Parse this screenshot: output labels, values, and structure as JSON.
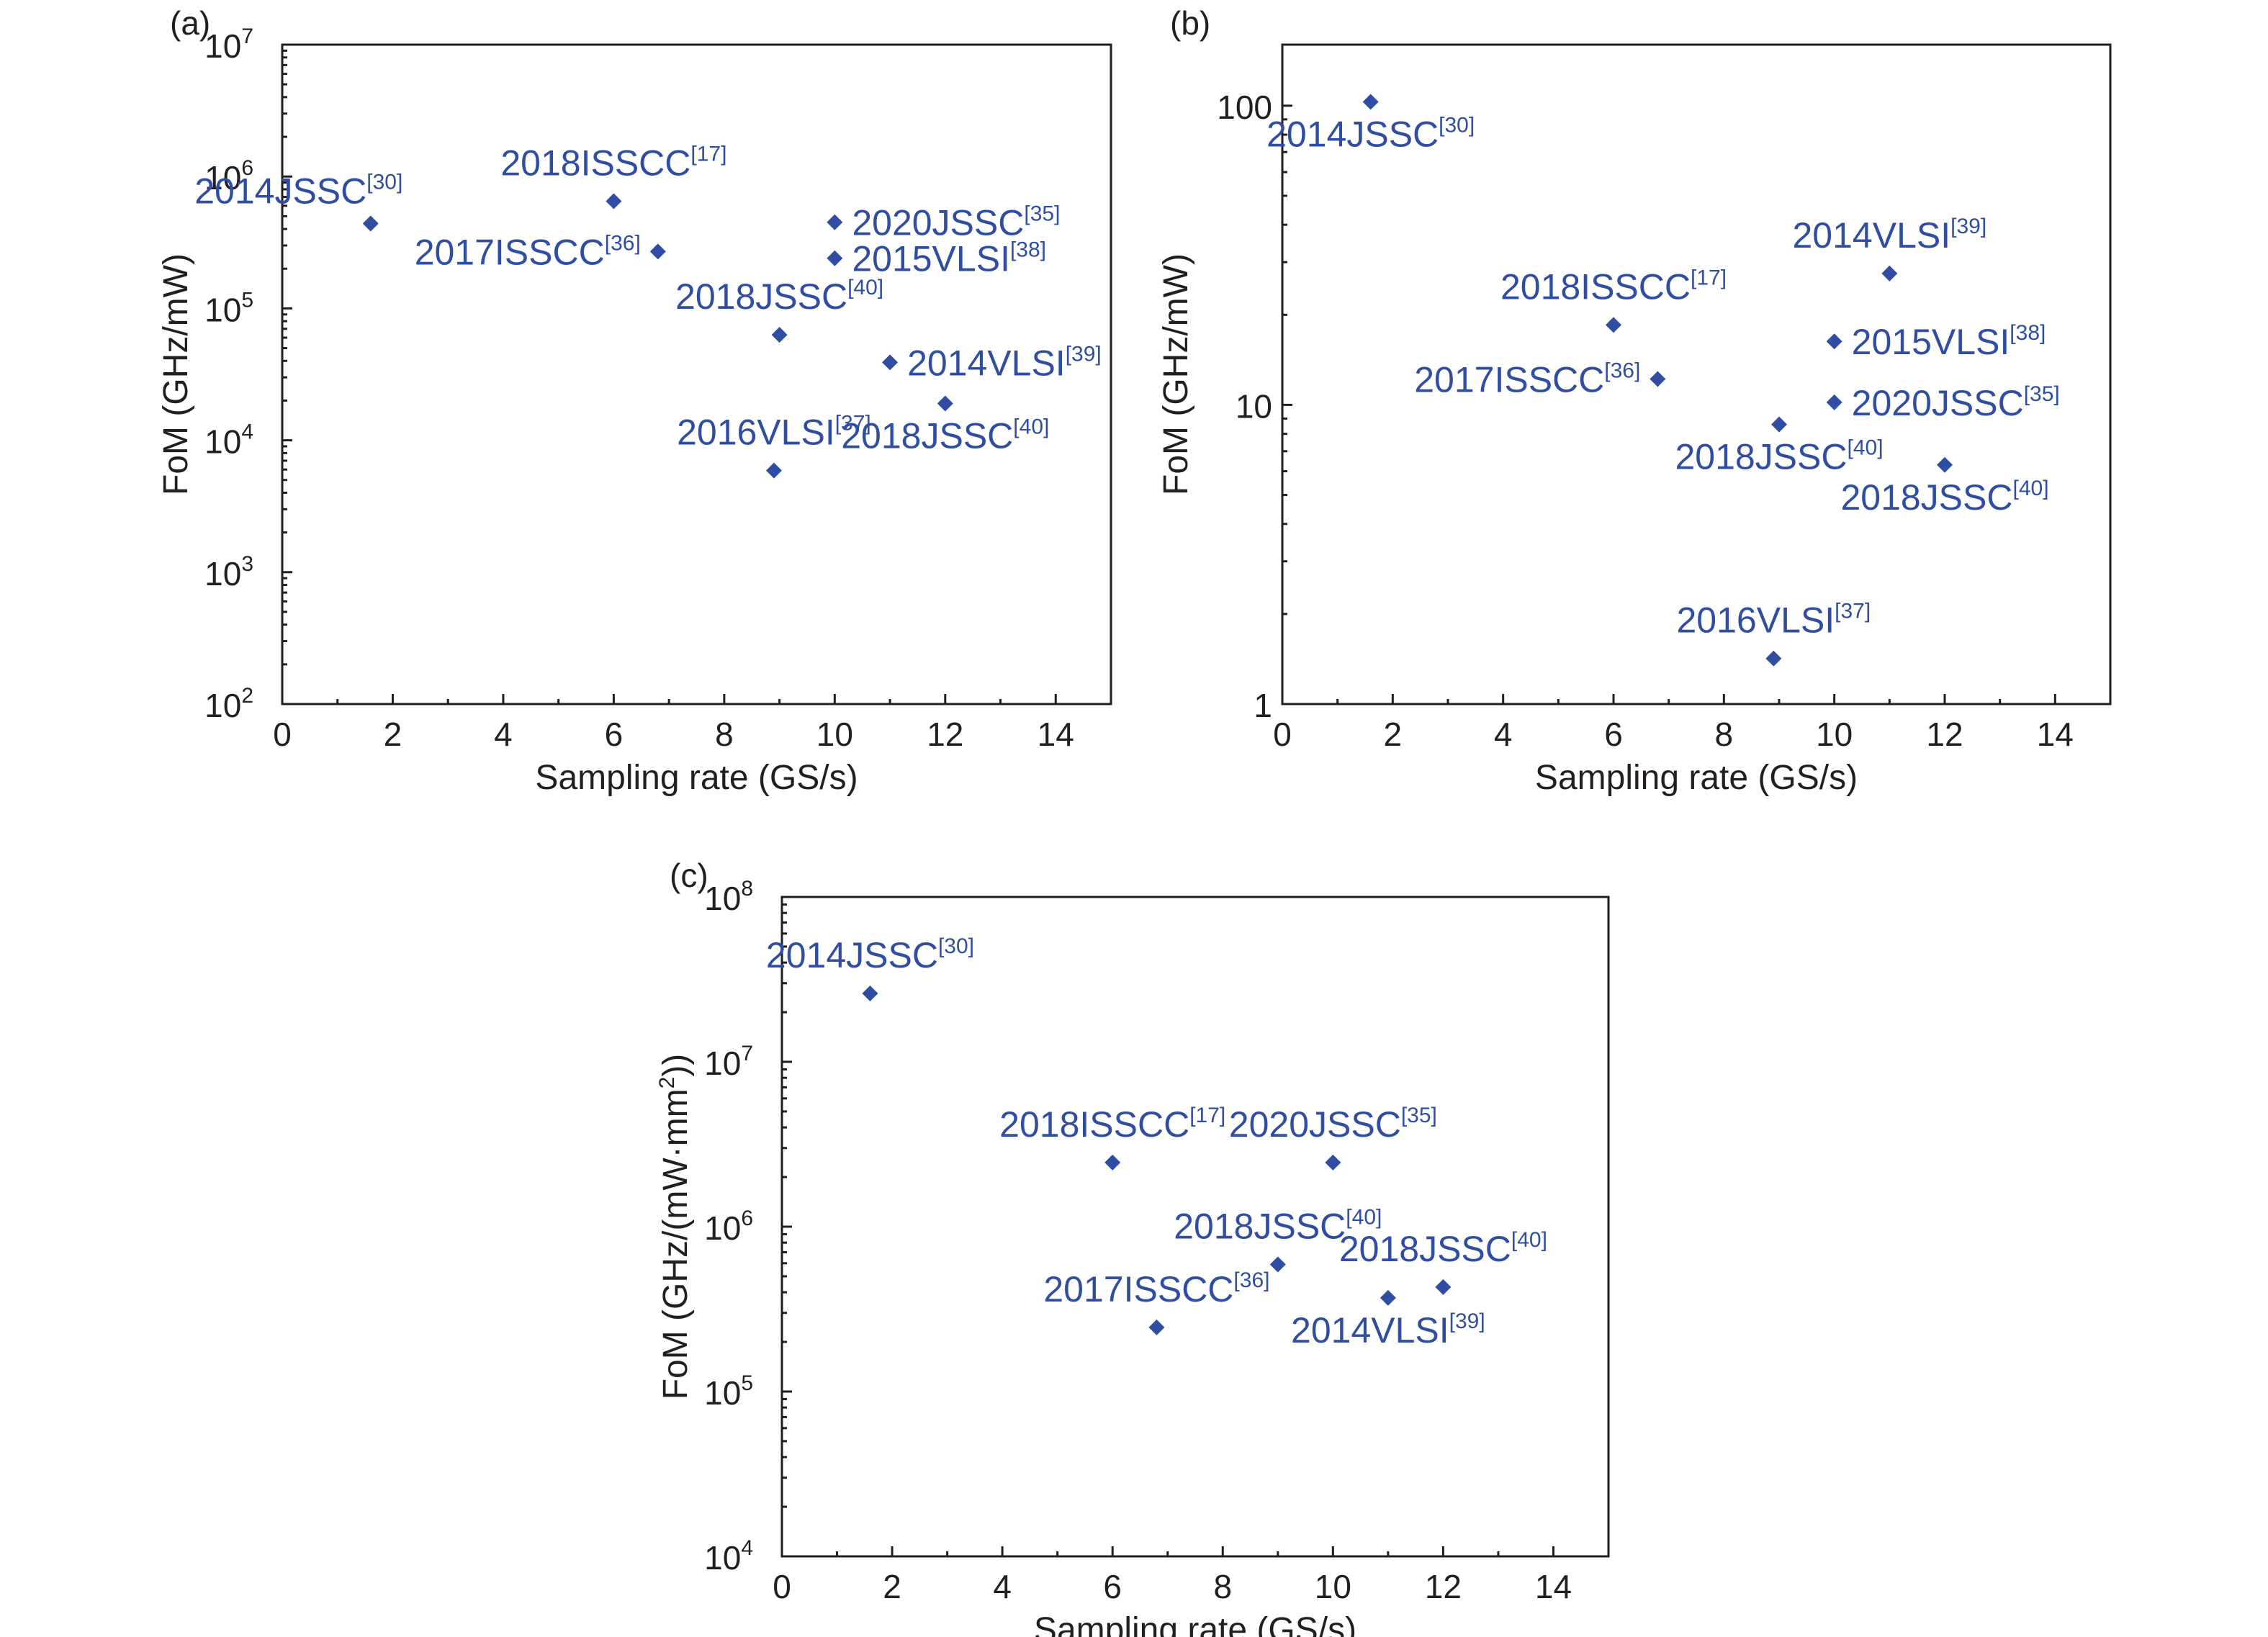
{
  "colors": {
    "marker": "#2f4ea3",
    "axis": "#231f20"
  },
  "chart_data": [
    {
      "panel": "(a)",
      "type": "scatter",
      "xlabel": "Sampling rate (GS/s)",
      "ylabel": "FoM (GHz/mW)",
      "xlim": [
        0,
        15
      ],
      "ylim": [
        100,
        10000000
      ],
      "yscale": "log",
      "xticks": [
        "0",
        "2",
        "4",
        "6",
        "8",
        "10",
        "12",
        "14"
      ],
      "yticks": [
        {
          "base": "10",
          "exp": "2",
          "value": 100
        },
        {
          "base": "10",
          "exp": "3",
          "value": 1000
        },
        {
          "base": "10",
          "exp": "4",
          "value": 10000
        },
        {
          "base": "10",
          "exp": "5",
          "value": 100000
        },
        {
          "base": "10",
          "exp": "6",
          "value": 1000000
        },
        {
          "base": "10",
          "exp": "7",
          "value": 10000000
        }
      ],
      "points": [
        {
          "x": 1.6,
          "y": 440000,
          "label": "2014JSSC",
          "ref": "[30]",
          "pos": "top-left"
        },
        {
          "x": 6.0,
          "y": 650000,
          "label": "2018ISSCC",
          "ref": "[17]",
          "pos": "top"
        },
        {
          "x": 6.8,
          "y": 270000,
          "label": "2017ISSCC",
          "ref": "[36]",
          "pos": "left"
        },
        {
          "x": 10.0,
          "y": 450000,
          "label": "2020JSSC",
          "ref": "[35]",
          "pos": "right"
        },
        {
          "x": 10.0,
          "y": 240000,
          "label": "2015VLSI",
          "ref": "[38]",
          "pos": "right"
        },
        {
          "x": 9.0,
          "y": 63000,
          "label": "2018JSSC",
          "ref": "[40]",
          "pos": "top"
        },
        {
          "x": 11.0,
          "y": 39000,
          "label": "2014VLSI",
          "ref": "[39]",
          "pos": "right"
        },
        {
          "x": 12.0,
          "y": 19000,
          "label": "2018JSSC",
          "ref": "[40]",
          "pos": "bottom"
        },
        {
          "x": 8.9,
          "y": 5900,
          "label": "2016VLSI",
          "ref": "[37]",
          "pos": "top"
        }
      ]
    },
    {
      "panel": "(b)",
      "type": "scatter",
      "xlabel": "Sampling rate (GS/s)",
      "ylabel": "FoM (GHz/mW)",
      "xlim": [
        0,
        15
      ],
      "ylim": [
        1,
        160
      ],
      "yscale": "log",
      "xticks": [
        "0",
        "2",
        "4",
        "6",
        "8",
        "10",
        "12",
        "14"
      ],
      "yticks": [
        {
          "base": "1",
          "exp": "",
          "value": 1
        },
        {
          "base": "10",
          "exp": "",
          "value": 10
        },
        {
          "base": "100",
          "exp": "",
          "value": 100
        }
      ],
      "points": [
        {
          "x": 1.6,
          "y": 103,
          "label": "2014JSSC",
          "ref": "[30]",
          "pos": "bottom"
        },
        {
          "x": 11.0,
          "y": 27.5,
          "label": "2014VLSI",
          "ref": "[39]",
          "pos": "top"
        },
        {
          "x": 6.0,
          "y": 18.5,
          "label": "2018ISSCC",
          "ref": "[17]",
          "pos": "top"
        },
        {
          "x": 10.0,
          "y": 16.3,
          "label": "2015VLSI",
          "ref": "[38]",
          "pos": "right"
        },
        {
          "x": 6.8,
          "y": 12.2,
          "label": "2017ISSCC",
          "ref": "[36]",
          "pos": "left"
        },
        {
          "x": 10.0,
          "y": 10.2,
          "label": "2020JSSC",
          "ref": "[35]",
          "pos": "right"
        },
        {
          "x": 9.0,
          "y": 8.6,
          "label": "2018JSSC",
          "ref": "[40]",
          "pos": "bottom"
        },
        {
          "x": 12.0,
          "y": 6.3,
          "label": "2018JSSC",
          "ref": "[40]",
          "pos": "bottom"
        },
        {
          "x": 8.9,
          "y": 1.42,
          "label": "2016VLSI",
          "ref": "[37]",
          "pos": "top"
        }
      ]
    },
    {
      "panel": "(c)",
      "type": "scatter",
      "xlabel": "Sampling rate (GS/s)",
      "ylabel": "FoM (GHz/(mW·mm",
      "ylabel_sup": "2",
      "ylabel_end": "))",
      "xlim": [
        0,
        15
      ],
      "ylim": [
        10000,
        100000000
      ],
      "yscale": "log",
      "xticks": [
        "0",
        "2",
        "4",
        "6",
        "8",
        "10",
        "12",
        "14"
      ],
      "yticks": [
        {
          "base": "10",
          "exp": "4",
          "value": 10000
        },
        {
          "base": "10",
          "exp": "5",
          "value": 100000
        },
        {
          "base": "10",
          "exp": "6",
          "value": 1000000
        },
        {
          "base": "10",
          "exp": "7",
          "value": 10000000
        },
        {
          "base": "10",
          "exp": "8",
          "value": 100000000
        }
      ],
      "points": [
        {
          "x": 1.6,
          "y": 26000000,
          "label": "2014JSSC",
          "ref": "[30]",
          "pos": "top"
        },
        {
          "x": 6.0,
          "y": 2450000,
          "label": "2018ISSCC",
          "ref": "[17]",
          "pos": "top"
        },
        {
          "x": 10.0,
          "y": 2450000,
          "label": "2020JSSC",
          "ref": "[35]",
          "pos": "top"
        },
        {
          "x": 9.0,
          "y": 590000,
          "label": "2018JSSC",
          "ref": "[40]",
          "pos": "top"
        },
        {
          "x": 12.0,
          "y": 430000,
          "label": "2018JSSC",
          "ref": "[40]",
          "pos": "top"
        },
        {
          "x": 11.0,
          "y": 370000,
          "label": "2014VLSI",
          "ref": "[39]",
          "pos": "bottom"
        },
        {
          "x": 6.8,
          "y": 245000,
          "label": "2017ISSCC",
          "ref": "[36]",
          "pos": "top"
        }
      ]
    }
  ]
}
